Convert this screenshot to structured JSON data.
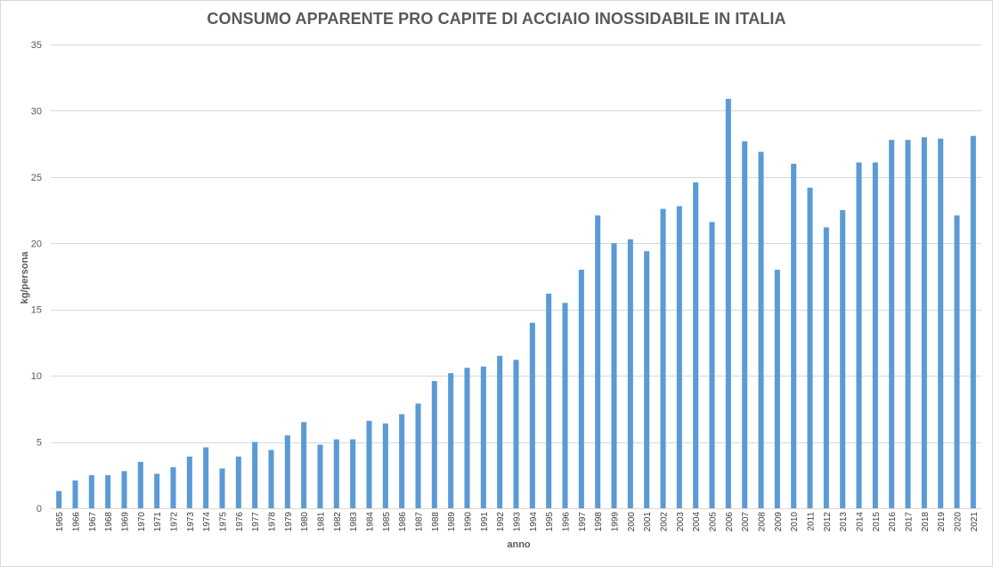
{
  "chart_data": {
    "type": "bar",
    "title": "CONSUMO APPARENTE PRO CAPITE DI ACCIAIO INOSSIDABILE IN ITALIA",
    "xlabel": "anno",
    "ylabel": "kg/persona",
    "ylim": [
      0,
      35
    ],
    "yticks": [
      0,
      5,
      10,
      15,
      20,
      25,
      30,
      35
    ],
    "grid": true,
    "legend": "none",
    "bar_color": "#5b9bd5",
    "categories": [
      "1965",
      "1966",
      "1967",
      "1968",
      "1969",
      "1970",
      "1971",
      "1972",
      "1973",
      "1974",
      "1975",
      "1976",
      "1977",
      "1978",
      "1979",
      "1980",
      "1981",
      "1982",
      "1983",
      "1984",
      "1985",
      "1986",
      "1987",
      "1988",
      "1989",
      "1990",
      "1991",
      "1992",
      "1993",
      "1994",
      "1995",
      "1996",
      "1997",
      "1998",
      "1999",
      "2000",
      "2001",
      "2002",
      "2003",
      "2004",
      "2005",
      "2006",
      "2007",
      "2008",
      "2009",
      "2010",
      "2011",
      "2012",
      "2013",
      "2014",
      "2015",
      "2016",
      "2017",
      "2018",
      "2019",
      "2020",
      "2021"
    ],
    "values": [
      1.3,
      2.1,
      2.5,
      2.5,
      2.8,
      3.5,
      2.6,
      3.1,
      3.9,
      4.6,
      3.0,
      3.9,
      5.0,
      4.4,
      5.5,
      6.5,
      4.8,
      5.2,
      5.2,
      6.6,
      6.4,
      7.1,
      7.9,
      9.6,
      10.2,
      10.6,
      10.7,
      11.5,
      11.2,
      14.0,
      16.2,
      15.5,
      18.0,
      22.1,
      20.0,
      20.3,
      19.4,
      22.6,
      22.8,
      24.6,
      21.6,
      30.9,
      27.7,
      26.9,
      18.0,
      26.0,
      24.2,
      21.2,
      22.5,
      26.1,
      26.1,
      27.8,
      27.8,
      28.0,
      27.9,
      22.1,
      28.1
    ]
  }
}
